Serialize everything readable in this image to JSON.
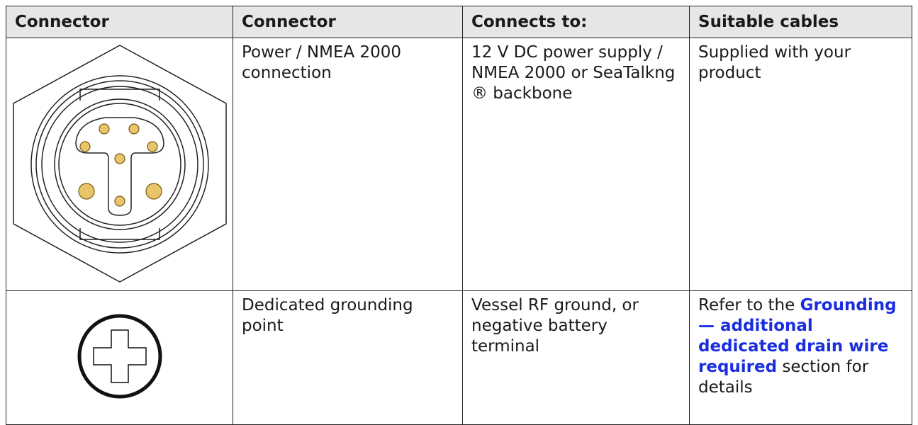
{
  "table": {
    "header": [
      "Connector",
      "Connector",
      "Connects to:",
      "Suitable cables"
    ],
    "rows": [
      [
        "Power / NMEA 2000 connection",
        "12 V DC power supply / NMEA 2000 or SeaTalkng ® backbone",
        "Supplied with your product"
      ],
      [
        "Dedicated grounding point",
        "Vessel RF ground, or negative battery terminal",
        {
          "before": "Refer to the",
          "link": "Grounding — additional dedicated drain wire required",
          "after": "section for details"
        }
      ]
    ]
  }
}
